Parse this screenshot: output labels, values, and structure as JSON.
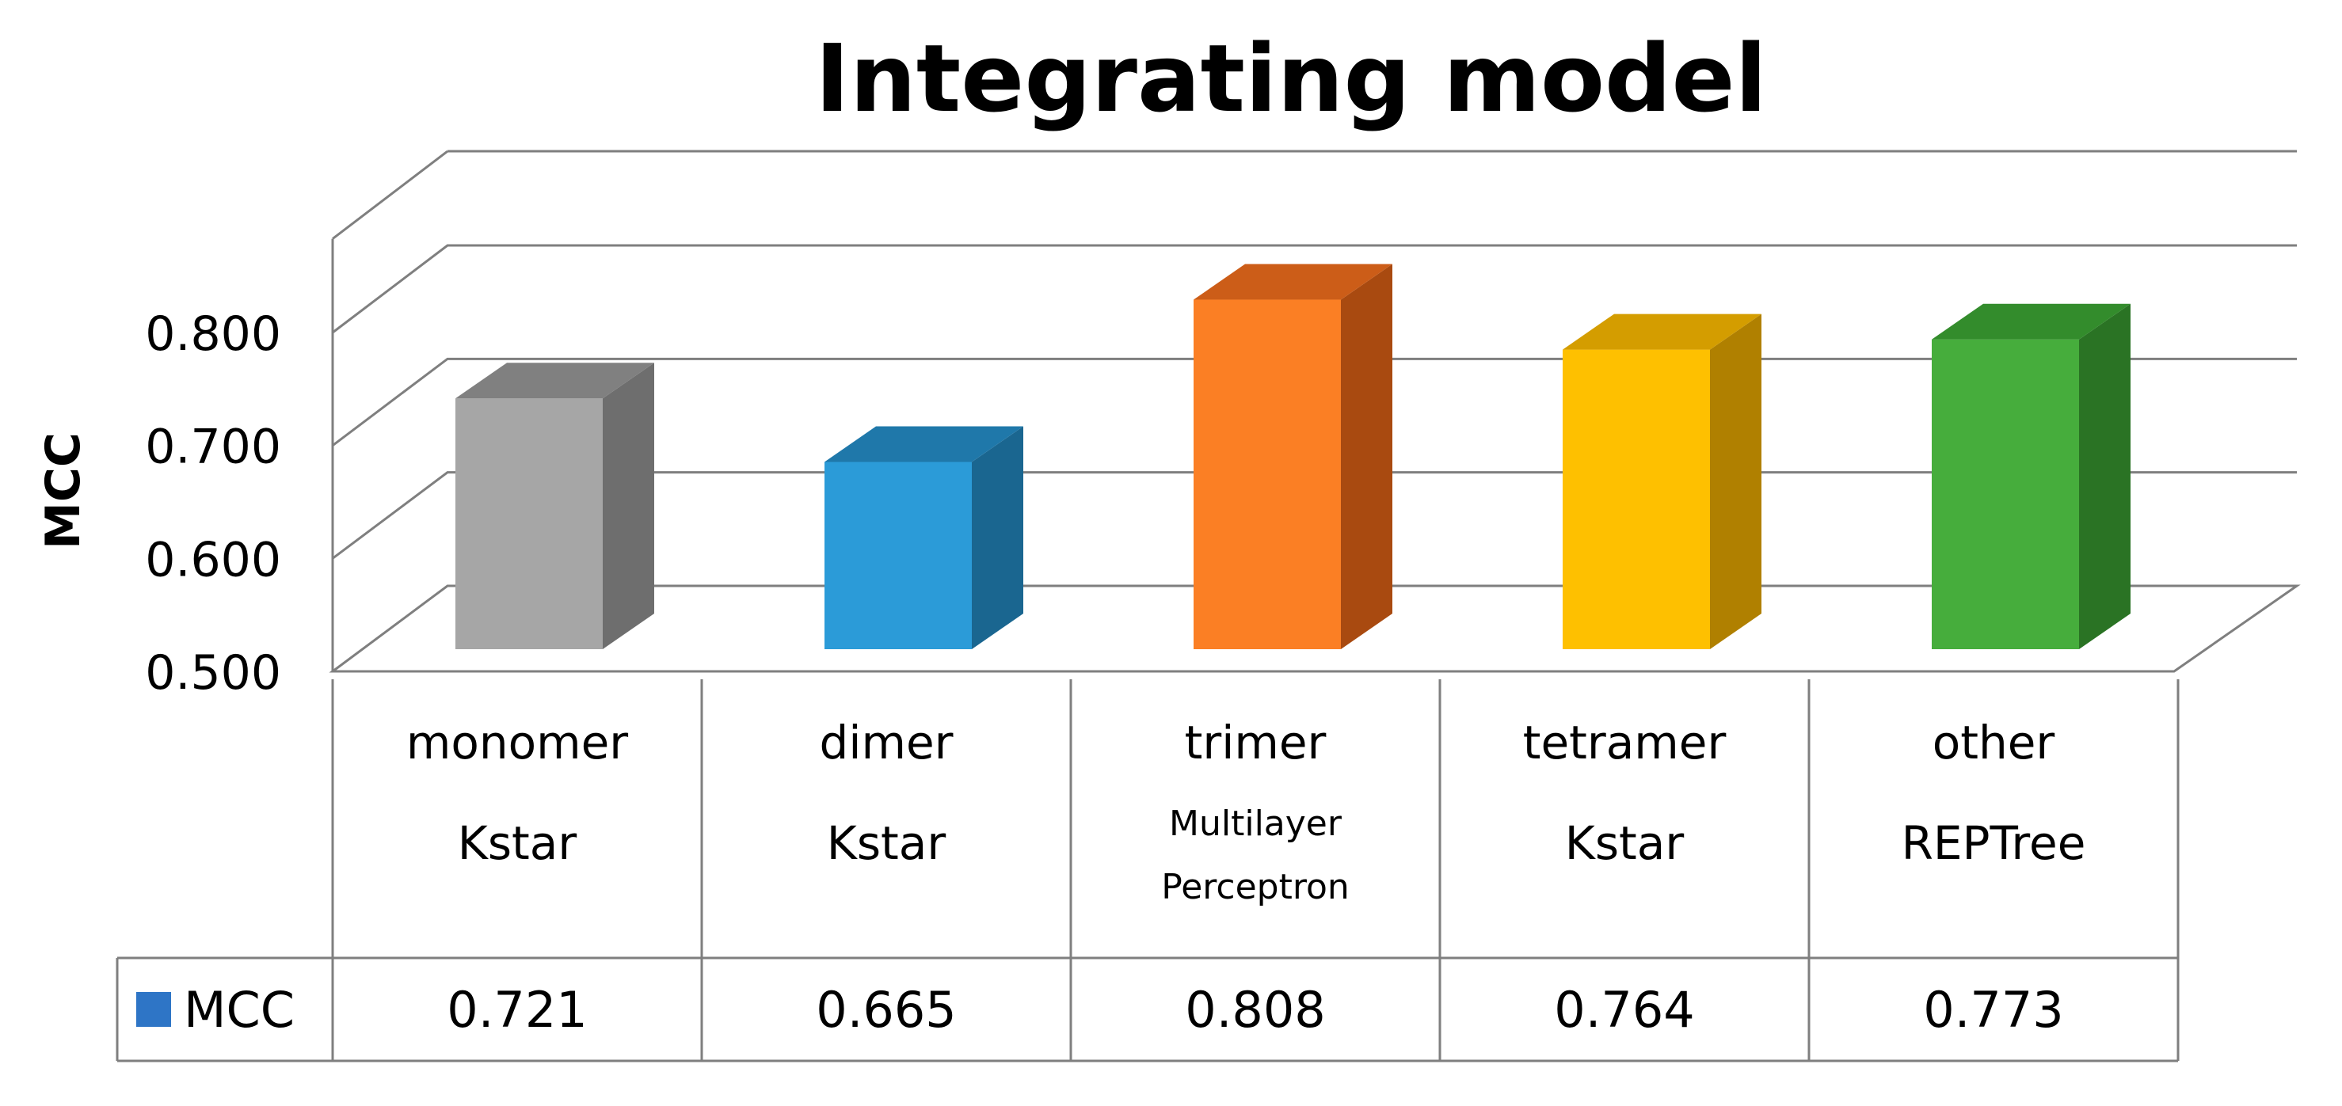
{
  "chart_data": {
    "type": "bar",
    "title": "Integrating model",
    "ylabel": "MCC",
    "ylim": [
      0.5,
      0.8
    ],
    "yticks": [
      "0.500",
      "0.600",
      "0.700",
      "0.800"
    ],
    "categories": [
      {
        "line1": "monomer",
        "line2": [
          "Kstar"
        ]
      },
      {
        "line1": "dimer",
        "line2": [
          "Kstar"
        ]
      },
      {
        "line1": "trimer",
        "line2": [
          "Multilayer",
          "Perceptron"
        ]
      },
      {
        "line1": "tetramer",
        "line2": [
          "Kstar"
        ]
      },
      {
        "line1": "other",
        "line2": [
          "REPTree"
        ]
      }
    ],
    "series": [
      {
        "name": "MCC",
        "values": [
          0.721,
          0.665,
          0.808,
          0.764,
          0.773
        ],
        "labels": [
          "0.721",
          "0.665",
          "0.808",
          "0.764",
          "0.773"
        ]
      }
    ],
    "legend_color": "#2e75c6",
    "bar_colors": [
      {
        "front": "#a6a6a6",
        "side": "#6e6e6e",
        "top": "#808080"
      },
      {
        "front": "#2b9bd8",
        "side": "#1a6690",
        "top": "#1f78aa"
      },
      {
        "front": "#fb7f24",
        "side": "#a94a10",
        "top": "#cc5d18"
      },
      {
        "front": "#fec000",
        "side": "#b08000",
        "top": "#d49d00"
      },
      {
        "front": "#46ad3c",
        "side": "#2a7324",
        "top": "#338c2c"
      }
    ],
    "grid": true,
    "legend_placement": "data-table"
  }
}
